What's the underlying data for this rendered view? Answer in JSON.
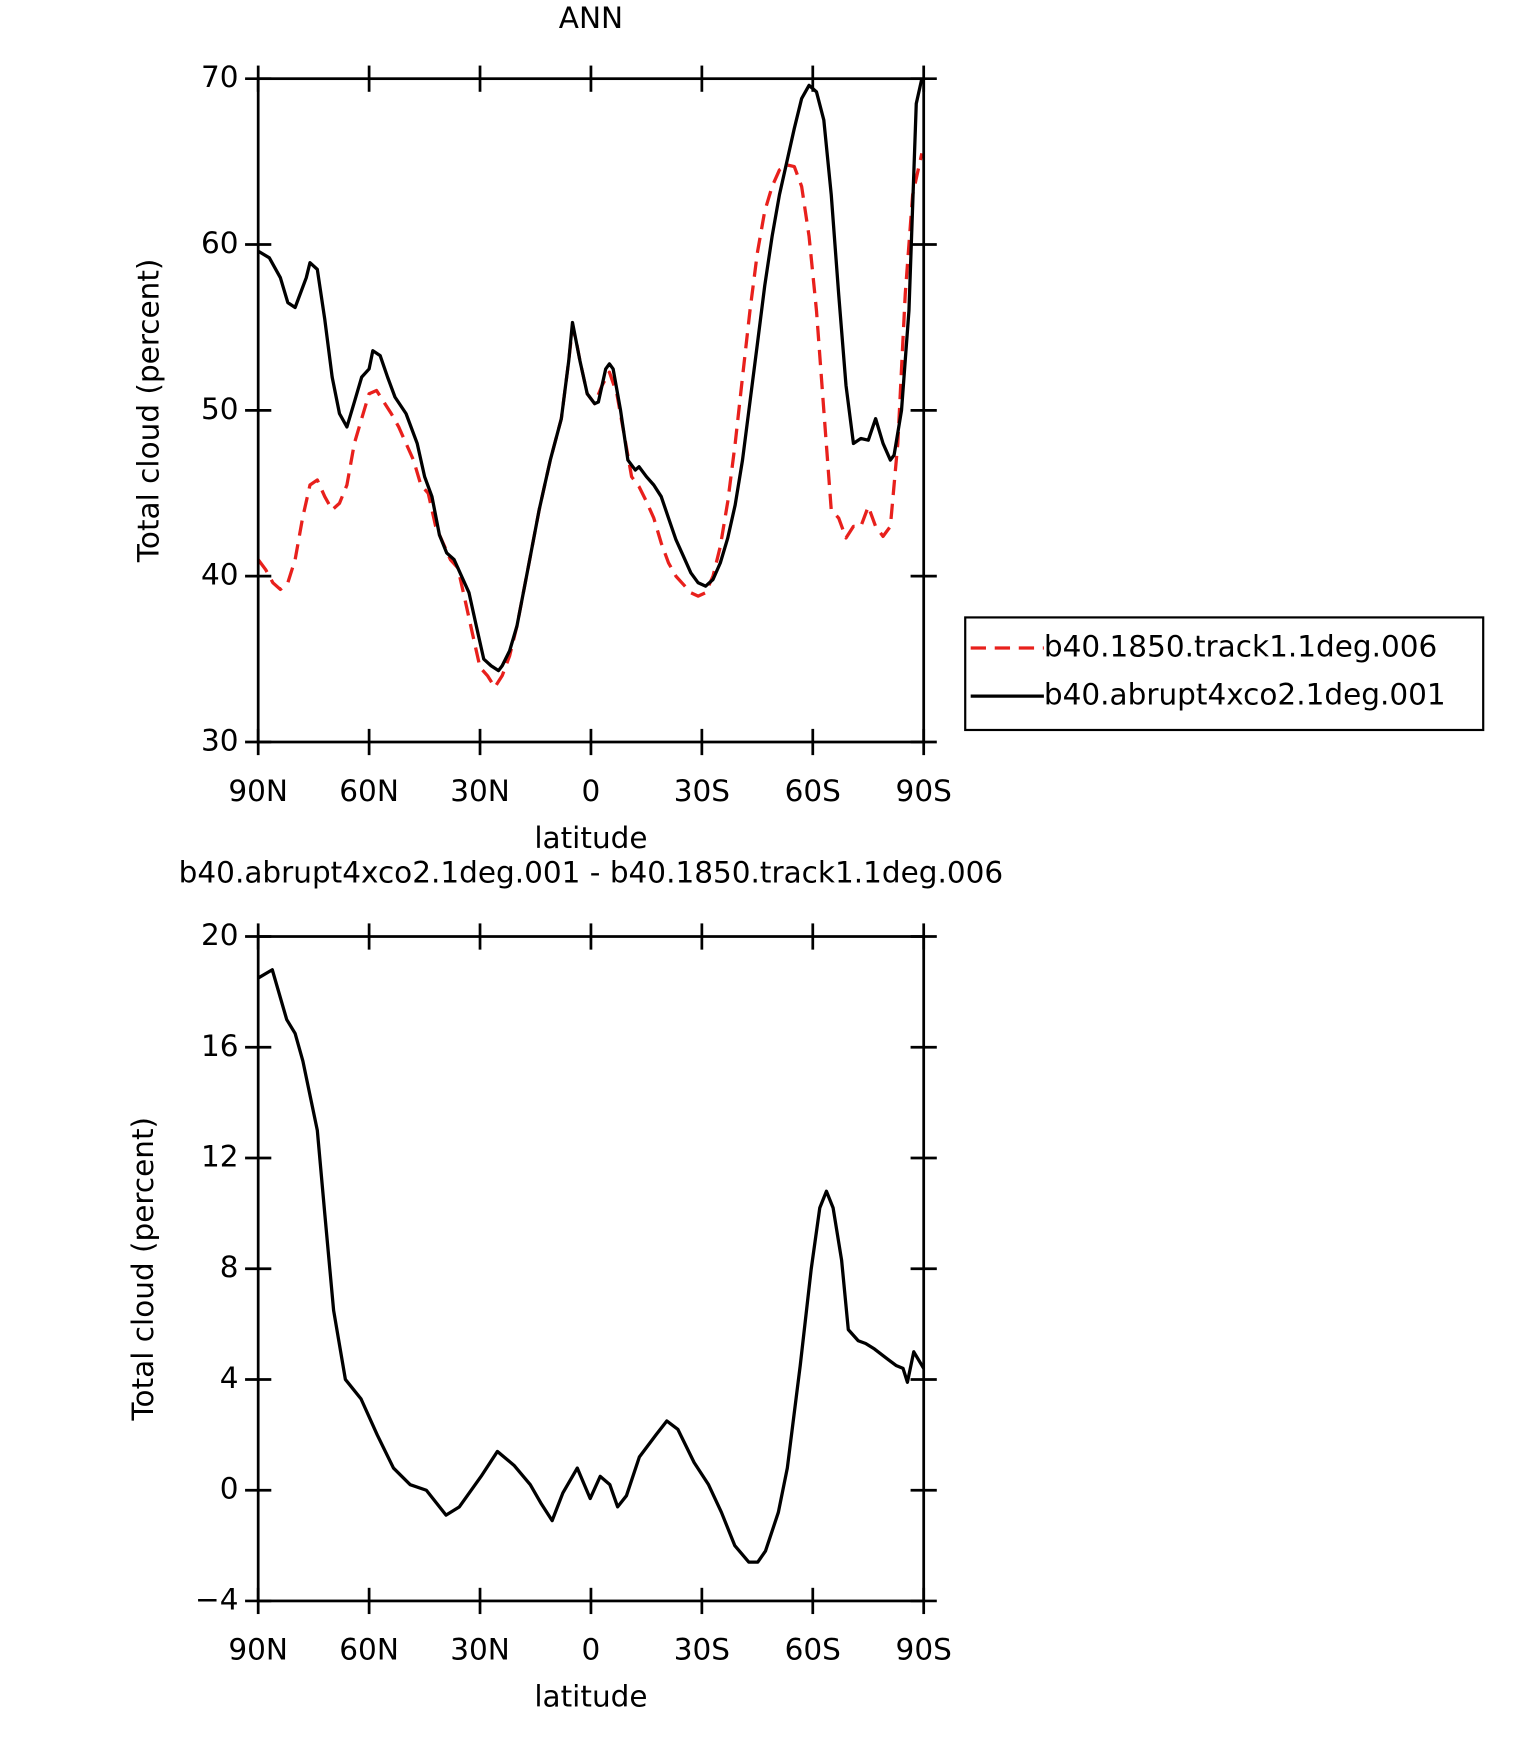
{
  "chart_data": [
    {
      "type": "line",
      "title": "ANN",
      "xlabel": "latitude",
      "ylabel": "Total cloud (percent)",
      "xlim": [
        90,
        -90
      ],
      "xticks": [
        {
          "value": 90,
          "label": "90N"
        },
        {
          "value": 60,
          "label": "60N"
        },
        {
          "value": 30,
          "label": "30N"
        },
        0,
        {
          "value": -30,
          "label": "30S"
        },
        {
          "value": -60,
          "label": "60S"
        },
        {
          "value": -90,
          "label": "90S"
        }
      ],
      "ylim": [
        30,
        70
      ],
      "yticks": [
        30,
        40,
        50,
        60,
        70
      ],
      "legend": "right",
      "series": [
        {
          "name": "b40.1850.track1.1deg.006",
          "color": "#e8201c",
          "dash": true,
          "x": [
            90,
            88,
            86,
            84,
            82,
            80,
            78,
            76,
            74,
            72,
            70,
            68,
            66,
            64,
            62,
            60,
            58,
            56,
            54,
            52,
            50,
            48,
            46,
            44,
            42,
            40,
            38,
            36,
            34,
            32,
            30,
            28,
            26,
            24,
            22,
            20,
            17,
            14,
            11,
            8,
            6,
            5,
            4,
            3,
            1,
            -1,
            -3,
            -5,
            -7,
            -9,
            -11,
            -13,
            -15,
            -17,
            -19,
            -21,
            -23,
            -25,
            -27,
            -29,
            -31,
            -33,
            -35,
            -37,
            -39,
            -41,
            -43,
            -45,
            -47,
            -49,
            -51,
            -53,
            -55,
            -57,
            -59,
            -61,
            -63,
            -65,
            -67,
            -69,
            -71,
            -73,
            -75,
            -77,
            -79,
            -81,
            -83,
            -85,
            -87,
            -89.5
          ],
          "values": [
            41,
            40.4,
            39.6,
            39.2,
            39.6,
            41,
            43.5,
            45.5,
            45.8,
            44.8,
            44,
            44.4,
            45.5,
            48,
            49.5,
            51,
            51.2,
            50.5,
            49.8,
            49,
            48,
            47,
            45.5,
            45,
            43,
            42,
            41,
            40.5,
            38.5,
            36.5,
            34.5,
            34,
            33.3,
            34,
            35.2,
            37,
            40.5,
            44,
            47,
            49.5,
            53,
            55,
            54.2,
            53,
            51,
            50.4,
            51.5,
            52.3,
            51,
            48.5,
            46,
            45.4,
            44.5,
            43.5,
            42,
            40.8,
            40,
            39.5,
            39,
            38.8,
            39,
            40,
            41.8,
            44.5,
            48,
            52,
            56,
            59.5,
            62,
            63.5,
            64.5,
            64.8,
            64.7,
            63.5,
            60.5,
            56,
            50,
            44,
            43.5,
            42.3,
            43,
            43,
            44.2,
            43,
            42.4,
            43,
            48,
            57,
            63,
            65.5
          ]
        },
        {
          "name": "b40.abrupt4xco2.1deg.001",
          "color": "#000000",
          "dash": false,
          "x": [
            90,
            87,
            84,
            82,
            80,
            77,
            76,
            74,
            72,
            70,
            68,
            66,
            64,
            62,
            60,
            59,
            57,
            55,
            53,
            50,
            47,
            45,
            43,
            41,
            39,
            37,
            35,
            33,
            31,
            29,
            27,
            25,
            24,
            22,
            20,
            17,
            14,
            11,
            8,
            6,
            5,
            3,
            1,
            -1,
            -2,
            -4,
            -5,
            -6,
            -8,
            -10,
            -12,
            -13,
            -15,
            -17,
            -19,
            -21,
            -23,
            -25,
            -27,
            -29,
            -31,
            -33,
            -35,
            -37,
            -39,
            -41,
            -43,
            -45,
            -47,
            -49,
            -51,
            -53,
            -55,
            -57,
            -59,
            -61,
            -63,
            -65,
            -67,
            -69,
            -71,
            -73,
            -75,
            -77,
            -79,
            -81,
            -82,
            -84,
            -86,
            -88,
            -89.5
          ],
          "values": [
            59.6,
            59.2,
            58,
            56.5,
            56.2,
            58,
            58.9,
            58.5,
            55.5,
            52,
            49.8,
            49,
            50.5,
            52,
            52.5,
            53.6,
            53.3,
            52,
            50.8,
            49.8,
            48,
            46,
            44.8,
            42.5,
            41.4,
            41,
            40,
            39,
            37,
            35,
            34.6,
            34.3,
            34.6,
            35.5,
            37,
            40.5,
            44,
            47,
            49.5,
            53,
            55.3,
            53,
            51,
            50.4,
            50.5,
            52.5,
            52.8,
            52.5,
            50,
            47,
            46.4,
            46.6,
            46,
            45.5,
            44.8,
            43.5,
            42.2,
            41.2,
            40.2,
            39.6,
            39.4,
            39.8,
            40.8,
            42.3,
            44.3,
            47,
            50.5,
            54,
            57.5,
            60.5,
            63,
            65,
            67,
            68.8,
            69.6,
            69.2,
            67.5,
            63,
            57,
            51.5,
            48,
            48.3,
            48.2,
            49.5,
            48,
            47,
            47.3,
            50,
            56,
            68.5,
            70
          ]
        }
      ]
    },
    {
      "type": "line",
      "title": "b40.abrupt4xco2.1deg.001 - b40.1850.track1.1deg.006",
      "xlabel": "latitude",
      "ylabel": "Total cloud (percent)",
      "xlim": [
        90,
        -90
      ],
      "xticks": [
        {
          "value": 90,
          "label": "90N"
        },
        {
          "value": 60,
          "label": "60N"
        },
        {
          "value": 30,
          "label": "30N"
        },
        0,
        {
          "value": -30,
          "label": "30S"
        },
        {
          "value": -60,
          "label": "60S"
        },
        {
          "value": -90,
          "label": "90S"
        }
      ],
      "ylim": [
        -4,
        20
      ],
      "yticks": [
        {
          "value": -4,
          "label": "−4"
        },
        0,
        4,
        8,
        12,
        16,
        20
      ],
      "series": [
        {
          "color": "#000000",
          "dash": false,
          "x": [
            90,
            86.2,
            82.3,
            80,
            77.9,
            74,
            72,
            69.6,
            66.4,
            62.2,
            57.8,
            53.4,
            48.9,
            44.5,
            39.2,
            35.6,
            29.7,
            25.3,
            20.8,
            16.4,
            13.4,
            10.5,
            7.6,
            3.7,
            0.2,
            -2.5,
            -5.1,
            -7.2,
            -9.6,
            -13.1,
            -17.6,
            -20.5,
            -23.5,
            -27.9,
            -31.8,
            -35.3,
            -38.9,
            -42.7,
            -45.1,
            -47.2,
            -50.7,
            -53.1,
            -56.6,
            -59.6,
            -61.9,
            -63.7,
            -65.5,
            -67.8,
            -69.6,
            -72.3,
            -74.3,
            -76.7,
            -79.6,
            -82.6,
            -84.4,
            -85.6,
            -87.3,
            -90
          ],
          "values": [
            18.5,
            18.8,
            17,
            16.5,
            15.5,
            13,
            10,
            6.5,
            4,
            3.3,
            2,
            0.8,
            0.2,
            0,
            -0.9,
            -0.6,
            0.5,
            1.4,
            0.9,
            0.2,
            -0.5,
            -1.1,
            -0.1,
            0.8,
            -0.3,
            0.5,
            0.2,
            -0.6,
            -0.2,
            1.2,
            2,
            2.5,
            2.2,
            1,
            0.2,
            -0.8,
            -2,
            -2.6,
            -2.6,
            -2.2,
            -0.8,
            0.8,
            4.5,
            8,
            10.2,
            10.8,
            10.2,
            8.3,
            5.8,
            5.4,
            5.3,
            5.1,
            4.8,
            4.5,
            4.4,
            3.9,
            5,
            4.4
          ]
        }
      ]
    }
  ]
}
